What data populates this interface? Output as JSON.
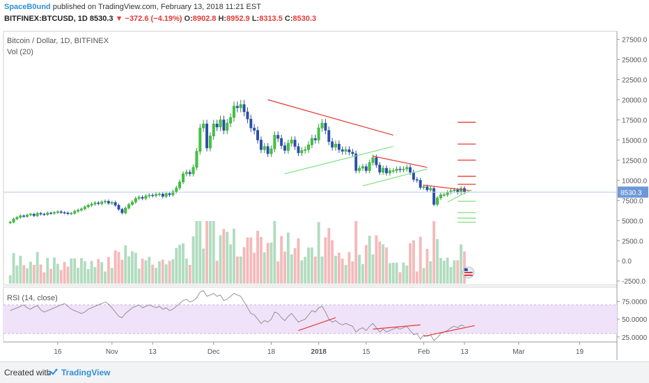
{
  "header": {
    "author": "SpaceB0und",
    "published": "published on TradingView.com, February 13, 2018 11:21 EST",
    "symbol": "BITFINEX:BTCUSD, 1D",
    "last": "8530.3",
    "change": "−372.6 (−4.19%)",
    "open_label": "O:",
    "open": "8902.8",
    "high_label": "H:",
    "high": "8952.9",
    "low_label": "L:",
    "low": "8313.5",
    "close_label": "C:",
    "close": "8530.3"
  },
  "pane_labels": {
    "main": "Bitcoin / Dollar, 1D, BITFINEX",
    "volume": "Vol (20)",
    "rsi": "RSI (14, close)"
  },
  "footer": {
    "created_with": "Created with",
    "brand": "TradingView"
  },
  "colors": {
    "up": "#2e9b2e",
    "up_fill": "#41c841",
    "down": "#2b4ea8",
    "vol_up": "#a8d8b8",
    "vol_down": "#f3b3b3",
    "rsi_band": "#efe2f9",
    "trend_red": "#e53935",
    "trend_green": "#7ee07e",
    "price_label": "#6d98d8"
  },
  "chart_data": [
    {
      "type": "candlestick",
      "y_axis_ticks": [
        "27500.0",
        "25000.0",
        "22500.0",
        "20000.0",
        "17500.0",
        "15000.0",
        "12500.0",
        "10000.0",
        "7500.0",
        "5000.0",
        "2500.0",
        "0.0",
        "-2500.0"
      ],
      "y_range": [
        -3000,
        28500
      ],
      "x_tick_labels": [
        "16",
        "Nov",
        "13",
        "Dec",
        "18",
        "2018",
        "15",
        "Feb",
        "13",
        "Mar",
        "19"
      ],
      "x_tick_dates": [
        "2017-10-16",
        "2017-11-01",
        "2017-11-13",
        "2017-12-01",
        "2017-12-18",
        "2018-01-01",
        "2018-01-15",
        "2018-02-01",
        "2018-02-13",
        "2018-03-01",
        "2018-03-19"
      ],
      "x_range": [
        "2017-09-30",
        "2018-03-30"
      ],
      "last_price_label": "8530.3",
      "candle_closes": [
        4800,
        5200,
        5400,
        5600,
        5500,
        5700,
        5800,
        5600,
        5900,
        5800,
        5750,
        5950,
        5900,
        6000,
        6100,
        6000,
        5950,
        5850,
        5900,
        6150,
        6300,
        6450,
        6700,
        6900,
        7050,
        7200,
        7100,
        7300,
        7400,
        7150,
        7250,
        6900,
        6400,
        5950,
        6550,
        7000,
        7300,
        7750,
        7900,
        7750,
        8050,
        8150,
        8100,
        8250,
        8300,
        8000,
        8350,
        8200,
        8600,
        9050,
        9800,
        10800,
        11000,
        10800,
        11600,
        13600,
        16500,
        17000,
        14000,
        15500,
        17000,
        16600,
        17500,
        16200,
        17100,
        17800,
        19200,
        19000,
        19400,
        18500,
        17600,
        16500,
        16200,
        15000,
        13800,
        14200,
        13300,
        13900,
        15600,
        15200,
        14300,
        13700,
        14600,
        15000,
        14200,
        13400,
        13700,
        13800,
        14400,
        15200,
        15000,
        16500,
        17100,
        16200,
        14800,
        14100,
        14500,
        13800,
        13600,
        13800,
        13500,
        13300,
        11200,
        11500,
        11700,
        11200,
        12200,
        12800,
        11900,
        11000,
        11500,
        10900,
        11200,
        11200,
        11400,
        11300,
        11400,
        11600,
        11000,
        10100,
        10000,
        9100,
        9200,
        8800,
        9000,
        7000,
        7800,
        8200,
        8200,
        8500,
        8700,
        8800,
        8500,
        9000,
        8530
      ],
      "trendlines": [
        {
          "color": "red",
          "from": [
            "2017-12-17",
            20000
          ],
          "to": [
            "2018-01-23",
            15600
          ]
        },
        {
          "color": "green",
          "from": [
            "2017-12-22",
            10800
          ],
          "to": [
            "2018-01-23",
            14200
          ]
        },
        {
          "color": "red",
          "from": [
            "2018-01-17",
            13000
          ],
          "to": [
            "2018-02-02",
            11600
          ]
        },
        {
          "color": "green",
          "from": [
            "2018-01-14",
            9300
          ],
          "to": [
            "2018-02-02",
            11400
          ]
        },
        {
          "color": "red",
          "from": [
            "2018-02-01",
            9400
          ],
          "to": [
            "2018-02-15",
            8700
          ]
        },
        {
          "color": "green",
          "from": [
            "2018-02-08",
            7300
          ],
          "to": [
            "2018-02-15",
            8800
          ]
        }
      ],
      "price_levels": {
        "red": [
          17200,
          14500,
          12500,
          10500,
          9500
        ],
        "green": [
          7400,
          6000,
          5300,
          4800
        ]
      },
      "volume_note": "Vol (20)"
    },
    {
      "type": "line",
      "title": "RSI (14, close)",
      "y_axis_ticks": [
        "75.0000",
        "50.0000",
        "25.0000"
      ],
      "y_range": [
        18,
        95
      ],
      "band": [
        30,
        70
      ],
      "values": [
        62,
        64,
        66,
        68,
        70,
        66,
        64,
        67,
        69,
        63,
        60,
        62,
        64,
        66,
        68,
        70,
        72,
        68,
        64,
        62,
        60,
        58,
        60,
        64,
        66,
        68,
        70,
        72,
        74,
        71,
        66,
        60,
        54,
        52,
        58,
        62,
        66,
        68,
        70,
        66,
        68,
        70,
        68,
        66,
        68,
        64,
        66,
        62,
        64,
        68,
        72,
        76,
        78,
        74,
        76,
        80,
        88,
        90,
        82,
        84,
        86,
        82,
        84,
        76,
        78,
        82,
        86,
        84,
        82,
        74,
        66,
        58,
        56,
        50,
        44,
        48,
        46,
        50,
        60,
        58,
        52,
        48,
        54,
        58,
        52,
        46,
        48,
        50,
        56,
        62,
        60,
        66,
        68,
        60,
        50,
        46,
        48,
        44,
        42,
        44,
        42,
        40,
        32,
        36,
        38,
        34,
        40,
        44,
        38,
        32,
        36,
        32,
        34,
        36,
        38,
        36,
        38,
        40,
        34,
        28,
        30,
        22,
        28,
        26,
        28,
        20,
        24,
        30,
        32,
        34,
        38,
        40,
        38,
        42,
        40
      ],
      "divergence_lines": [
        {
          "from": [
            "2017-12-26",
            34
          ],
          "to": [
            "2018-01-06",
            52
          ]
        },
        {
          "from": [
            "2018-01-17",
            36
          ],
          "to": [
            "2018-01-31",
            42
          ]
        },
        {
          "from": [
            "2018-02-01",
            26
          ],
          "to": [
            "2018-02-16",
            41
          ]
        }
      ]
    }
  ]
}
